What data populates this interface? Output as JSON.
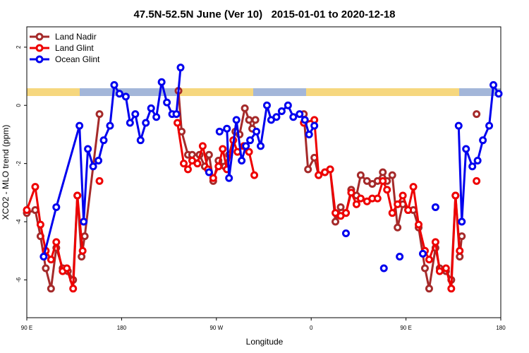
{
  "chart_data": {
    "type": "line",
    "title": "47.5N-52.5N June (Ver 10)   2015-01-01 to 2020-12-18",
    "x_label": "Longitude",
    "y_label": "XCO2 - MLO trend (ppm)",
    "xlim": [
      90,
      540
    ],
    "ylim": [
      -7.3,
      2.7
    ],
    "xticks": [
      {
        "value": 90,
        "label": "90 E"
      },
      {
        "value": 180,
        "label": "180"
      },
      {
        "value": 270,
        "label": "90 W"
      },
      {
        "value": 360,
        "label": "0"
      },
      {
        "value": 450,
        "label": "90 E"
      },
      {
        "value": 540,
        "label": "180"
      }
    ],
    "yticks": [
      -6,
      -4,
      -2,
      0,
      2
    ],
    "legend": "top-left",
    "series": [
      {
        "name": "Land Nadir",
        "color": "#a52a2a",
        "x": [
          90,
          98,
          103,
          108,
          113,
          118,
          124,
          129,
          134,
          138,
          142,
          145,
          159,
          null,
          234,
          237,
          243,
          247,
          251,
          254,
          259,
          263,
          267,
          272,
          278,
          282,
          288,
          292,
          297,
          301,
          304,
          307,
          null,
          353,
          357,
          363,
          367,
          373,
          378,
          383,
          388,
          393,
          398,
          403,
          407,
          413,
          418,
          423,
          428,
          432,
          437,
          442,
          447,
          452,
          457,
          462,
          468,
          472,
          478,
          482,
          488,
          493,
          497,
          501,
          503,
          null,
          517
        ],
        "values": [
          -3.7,
          -3.6,
          -4.5,
          -5.6,
          -6.3,
          -4.9,
          -5.6,
          -5.7,
          -6.0,
          -3.1,
          -5.2,
          -4.5,
          -0.3,
          null,
          0.5,
          -0.9,
          -1.7,
          -1.7,
          -1.8,
          -1.7,
          -2.1,
          -1.7,
          -2.6,
          -1.9,
          -2.1,
          -1.7,
          -0.9,
          -1.0,
          -0.1,
          -0.5,
          -0.8,
          -0.5,
          null,
          -0.3,
          -2.2,
          -1.8,
          -2.4,
          -2.3,
          -2.2,
          -4.0,
          -3.5,
          -3.7,
          -2.9,
          -3.1,
          -2.4,
          -2.6,
          -2.7,
          -2.6,
          -2.3,
          -2.6,
          -2.4,
          -4.2,
          -3.4,
          -3.6,
          -3.6,
          -4.2,
          -5.6,
          -6.3,
          -4.9,
          -5.6,
          -5.7,
          -6.0,
          -3.1,
          -5.2,
          -4.5,
          null,
          -0.3
        ]
      },
      {
        "name": "Land Glint",
        "color": "#ee0000",
        "x": [
          90,
          98,
          103,
          108,
          113,
          118,
          124,
          128,
          134,
          138,
          143,
          null,
          159,
          null,
          233,
          239,
          243,
          247,
          252,
          257,
          262,
          267,
          272,
          276,
          280,
          286,
          290,
          296,
          301,
          306,
          null,
          353,
          363,
          367,
          373,
          378,
          383,
          388,
          393,
          398,
          403,
          407,
          413,
          418,
          423,
          428,
          432,
          437,
          442,
          447,
          452,
          457,
          462,
          468,
          472,
          478,
          482,
          488,
          493,
          497,
          501,
          null,
          517
        ],
        "values": [
          -3.6,
          -2.8,
          -4.1,
          -5.0,
          -5.3,
          -4.7,
          -5.7,
          -5.6,
          -6.3,
          -3.1,
          -5.0,
          null,
          -2.6,
          null,
          -0.6,
          -2.0,
          -2.2,
          -1.9,
          -2.0,
          -1.4,
          -2.2,
          -2.5,
          -2.1,
          -1.5,
          -2.2,
          -1.2,
          -1.6,
          -1.4,
          -1.6,
          -2.4,
          null,
          -0.6,
          -0.5,
          -2.4,
          -2.3,
          -2.2,
          -3.7,
          -3.8,
          -3.7,
          -3.0,
          -3.4,
          -3.2,
          -3.3,
          -3.2,
          -3.2,
          -2.6,
          -2.9,
          -3.7,
          -3.4,
          -3.1,
          -3.6,
          -2.8,
          -4.1,
          -5.0,
          -5.3,
          -4.7,
          -5.7,
          -5.6,
          -6.3,
          -3.1,
          -5.0,
          null,
          -2.6
        ]
      },
      {
        "name": "Ocean Glint",
        "color": "#0000ee",
        "x": [
          106,
          118,
          140,
          144,
          148,
          153,
          158,
          163,
          169,
          173,
          178,
          184,
          188,
          193,
          198,
          203,
          208,
          213,
          218,
          223,
          228,
          232,
          236,
          null,
          263,
          null,
          273,
          280,
          282,
          289,
          294,
          298,
          302,
          308,
          312,
          318,
          322,
          327,
          332,
          338,
          343,
          349,
          354,
          358,
          363,
          null,
          393,
          null,
          429,
          null,
          444,
          null,
          466,
          null,
          478,
          null,
          500,
          503,
          507,
          513,
          518,
          523,
          529,
          533,
          538
        ],
        "values": [
          -5.2,
          -3.5,
          -0.7,
          -4.0,
          -1.5,
          -2.1,
          -1.9,
          -1.2,
          -0.7,
          0.7,
          0.4,
          0.3,
          -0.6,
          -0.3,
          -1.2,
          -0.6,
          -0.1,
          -0.4,
          0.8,
          0.1,
          -0.3,
          -0.3,
          1.3,
          null,
          -2.3,
          null,
          -0.9,
          -0.8,
          -2.5,
          -0.5,
          -1.9,
          -1.4,
          -1.2,
          -0.9,
          -1.4,
          0,
          -0.5,
          -0.4,
          -0.2,
          0,
          -0.4,
          -0.3,
          -0.5,
          -1.0,
          -0.7,
          null,
          -4.4,
          null,
          -5.6,
          null,
          -5.2,
          null,
          -5.1,
          null,
          -3.5,
          null,
          -0.7,
          -4.0,
          -1.5,
          -2.1,
          -1.9,
          -1.2,
          -0.7,
          0.7,
          0.4
        ]
      }
    ]
  }
}
